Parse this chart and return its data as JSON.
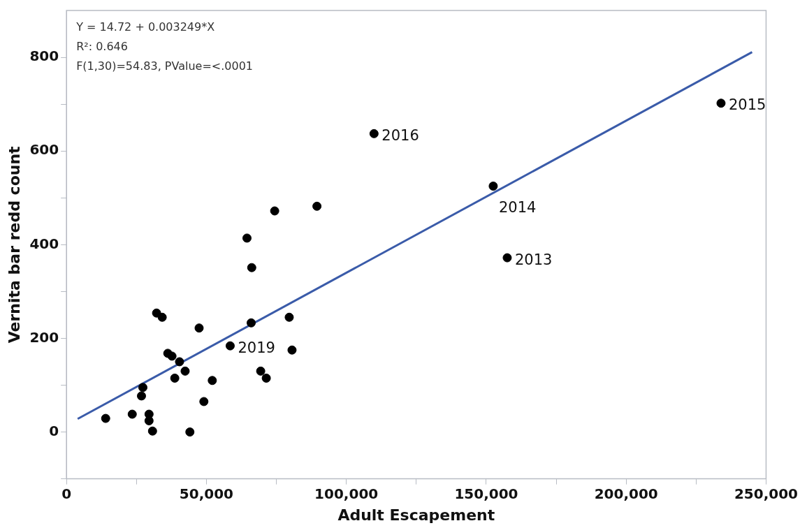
{
  "chart_data": {
    "type": "scatter",
    "xlabel": "Adult Escapement",
    "ylabel": "Vernita bar redd count",
    "x": [
      14000,
      23500,
      26800,
      27300,
      29500,
      29500,
      30750,
      32200,
      34200,
      36200,
      37700,
      38700,
      40400,
      42400,
      44100,
      47400,
      49100,
      52100,
      58500,
      64500,
      66000,
      66200,
      69400,
      71400,
      74400,
      79600,
      80600,
      89500,
      109900,
      152500,
      157500,
      233900
    ],
    "series": [
      {
        "color": "#000000",
        "marker": "circle",
        "values": [
          29,
          38,
          77,
          95,
          38,
          24,
          2,
          254,
          245,
          168,
          162,
          115,
          150,
          130,
          0,
          222,
          65,
          110,
          184,
          414,
          233,
          351,
          130,
          115,
          472,
          245,
          175,
          482,
          637,
          525,
          372,
          702
        ]
      },
      {
        "type": "line",
        "color": "#3a5ba9",
        "marker": "none",
        "line_style": "solid",
        "x": [
          4000,
          245000
        ],
        "values": [
          28,
          811
        ]
      }
    ],
    "xlim": [
      0,
      250000
    ],
    "ylim": [
      -100,
      900
    ],
    "xticks": [
      0,
      {
        "value": 25000,
        "label": null
      },
      {
        "value": 50000,
        "label": "50,000"
      },
      {
        "value": 75000,
        "label": null
      },
      {
        "value": 100000,
        "label": "100,000"
      },
      {
        "value": 125000,
        "label": null
      },
      {
        "value": 150000,
        "label": "150,000"
      },
      {
        "value": 175000,
        "label": null
      },
      {
        "value": 200000,
        "label": "200,000"
      },
      {
        "value": 225000,
        "label": null
      },
      {
        "value": 250000,
        "label": "250,000"
      }
    ],
    "yticks": [
      {
        "value": -100,
        "label": null
      },
      0,
      {
        "value": 100,
        "label": null
      },
      200,
      {
        "value": 300,
        "label": null
      },
      400,
      {
        "value": 500,
        "label": null
      },
      600,
      {
        "value": 700,
        "label": null
      },
      800
    ],
    "grid": false,
    "legend": false,
    "annotations": [
      "Y = 14.72 + 0.003249*X",
      "R²: 0.646",
      "F(1,30)=54.83, PValue=<.0001",
      {
        "text": "2019",
        "x": 58500,
        "y": 184
      },
      {
        "text": "2016",
        "x": 109900,
        "y": 637
      },
      {
        "text": "2014",
        "x": 152500,
        "y": 525
      },
      {
        "text": "2013",
        "x": 157500,
        "y": 372
      },
      {
        "text": "2015",
        "x": 233900,
        "y": 702
      }
    ]
  }
}
